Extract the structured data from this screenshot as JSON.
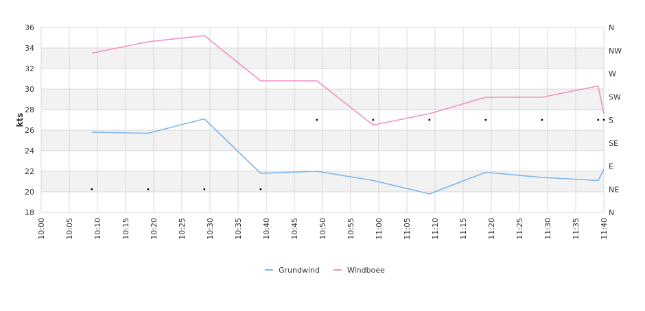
{
  "chart_data": {
    "type": "line",
    "xlabel": "",
    "ylabel": "kts",
    "ylim": [
      18,
      36
    ],
    "yticks": [
      18,
      20,
      22,
      24,
      26,
      28,
      30,
      32,
      34,
      36
    ],
    "x_ticks": [
      "10:00",
      "10:05",
      "10:10",
      "10:15",
      "10:20",
      "10:25",
      "10:30",
      "10:35",
      "10:40",
      "10:45",
      "10:50",
      "10:55",
      "11:00",
      "11:05",
      "11:10",
      "11:15",
      "11:20",
      "11:25",
      "11:30",
      "11:35",
      "11:40"
    ],
    "right_axis": {
      "labels": [
        "N",
        "NE",
        "E",
        "SE",
        "S",
        "SW",
        "W",
        "NW",
        "N"
      ],
      "range": [
        0,
        360
      ]
    },
    "grid": true,
    "legend": "bottom-center",
    "series": [
      {
        "name": "Grundwind",
        "color": "#7cb5ec",
        "points": [
          [
            "10:09",
            25.8
          ],
          [
            "10:19",
            25.7
          ],
          [
            "10:29",
            27.1
          ],
          [
            "10:39",
            21.8
          ],
          [
            "10:49",
            22.0
          ],
          [
            "10:59",
            21.1
          ],
          [
            "11:09",
            19.8
          ],
          [
            "11:19",
            21.9
          ],
          [
            "11:29",
            21.4
          ],
          [
            "11:39",
            21.1
          ],
          [
            "11:40",
            22.2
          ]
        ]
      },
      {
        "name": "Windboee",
        "color": "#f28fc3",
        "points": [
          [
            "10:09",
            33.5
          ],
          [
            "10:19",
            34.6
          ],
          [
            "10:29",
            35.2
          ],
          [
            "10:39",
            30.8
          ],
          [
            "10:49",
            30.8
          ],
          [
            "10:59",
            26.5
          ],
          [
            "11:09",
            27.6
          ],
          [
            "11:19",
            29.2
          ],
          [
            "11:29",
            29.2
          ],
          [
            "11:39",
            30.3
          ],
          [
            "11:40",
            27.6
          ]
        ]
      }
    ],
    "direction_points": [
      [
        "10:09",
        45
      ],
      [
        "10:19",
        45
      ],
      [
        "10:29",
        45
      ],
      [
        "10:39",
        45
      ],
      [
        "10:49",
        180
      ],
      [
        "10:59",
        180
      ],
      [
        "11:09",
        180
      ],
      [
        "11:19",
        180
      ],
      [
        "11:29",
        180
      ],
      [
        "11:39",
        180
      ],
      [
        "11:40",
        180
      ]
    ]
  },
  "colors": {
    "band": "#f2f2f2",
    "grid": "#d8d8d8",
    "marker": "#000000"
  }
}
